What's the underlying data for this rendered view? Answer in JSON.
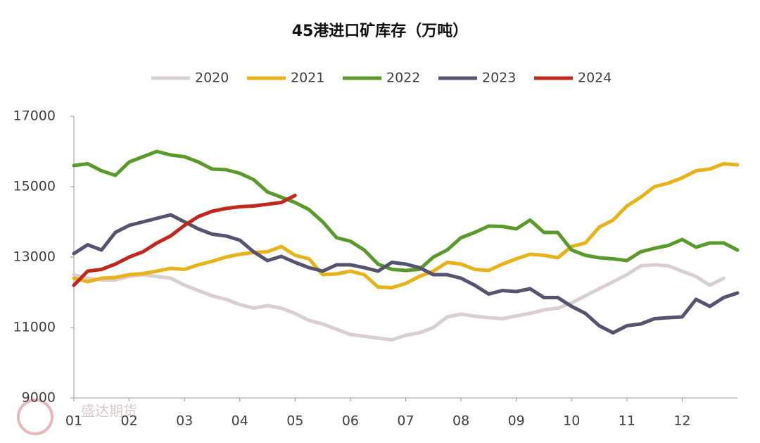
{
  "chart_data": {
    "type": "line",
    "title": "45港进口矿库存（万吨）",
    "watermark": "盛达期货",
    "x": [
      0,
      0.25,
      0.5,
      0.75,
      1,
      1.25,
      1.5,
      1.75,
      2,
      2.25,
      2.5,
      2.75,
      3,
      3.25,
      3.5,
      3.75,
      4,
      4.25,
      4.5,
      4.75,
      5,
      5.25,
      5.5,
      5.75,
      6,
      6.25,
      6.5,
      6.75,
      7,
      7.25,
      7.5,
      7.75,
      8,
      8.25,
      8.5,
      8.75,
      9,
      9.25,
      9.5,
      9.75,
      10,
      10.25,
      10.5,
      10.75,
      11,
      11.25,
      11.5,
      11.75,
      12
    ],
    "xlim": [
      0,
      12
    ],
    "xticks": [
      {
        "value": 0,
        "label": "01"
      },
      {
        "value": 1,
        "label": "02"
      },
      {
        "value": 2,
        "label": "03"
      },
      {
        "value": 3,
        "label": "04"
      },
      {
        "value": 4,
        "label": "05"
      },
      {
        "value": 5,
        "label": "06"
      },
      {
        "value": 6,
        "label": "07"
      },
      {
        "value": 7,
        "label": "08"
      },
      {
        "value": 8,
        "label": "09"
      },
      {
        "value": 9,
        "label": "10"
      },
      {
        "value": 10,
        "label": "11"
      },
      {
        "value": 11,
        "label": "12"
      }
    ],
    "ylim": [
      9000,
      17000
    ],
    "yticks": [
      9000,
      11000,
      13000,
      15000,
      17000
    ],
    "grid": false,
    "legend": "top",
    "series": [
      {
        "name": "2020",
        "color": "#d9cfd2",
        "values": [
          12500,
          12400,
          12350,
          12350,
          12450,
          12500,
          12450,
          12400,
          12200,
          12050,
          11900,
          11800,
          11650,
          11550,
          11620,
          11550,
          11400,
          11200,
          11100,
          10950,
          10800,
          10750,
          10700,
          10650,
          10780,
          10850,
          11000,
          11300,
          11380,
          11320,
          11280,
          11250,
          11330,
          11400,
          11500,
          11550,
          11700,
          11900,
          12100,
          12300,
          12500,
          12750,
          12780,
          12750,
          12600,
          12450,
          12200,
          12400,
          null
        ]
      },
      {
        "name": "2021",
        "color": "#e8b21a",
        "values": [
          12400,
          12300,
          12400,
          12420,
          12500,
          12530,
          12600,
          12680,
          12650,
          12780,
          12880,
          13000,
          13080,
          13130,
          13150,
          13300,
          13050,
          12950,
          12500,
          12520,
          12600,
          12500,
          12150,
          12130,
          12250,
          12450,
          12600,
          12850,
          12800,
          12650,
          12620,
          12800,
          12950,
          13080,
          13050,
          12980,
          13300,
          13400,
          13850,
          14050,
          14450,
          14700,
          15000,
          15100,
          15250,
          15450,
          15500,
          15650,
          15620
        ]
      },
      {
        "name": "2022",
        "color": "#5a9a2a",
        "values": [
          15600,
          15650,
          15450,
          15320,
          15700,
          15850,
          16000,
          15900,
          15850,
          15700,
          15500,
          15480,
          15380,
          15200,
          14850,
          14700,
          14550,
          14350,
          14000,
          13550,
          13450,
          13200,
          12800,
          12650,
          12620,
          12650,
          13000,
          13200,
          13550,
          13700,
          13880,
          13870,
          13800,
          14050,
          13700,
          13700,
          13200,
          13050,
          12980,
          12950,
          12900,
          13150,
          13250,
          13330,
          13500,
          13280,
          13400,
          13400,
          13200
        ]
      },
      {
        "name": "2023",
        "color": "#545470",
        "values": [
          13100,
          13350,
          13200,
          13700,
          13900,
          14000,
          14100,
          14200,
          14000,
          13800,
          13650,
          13600,
          13480,
          13150,
          12900,
          13020,
          12850,
          12700,
          12600,
          12780,
          12780,
          12700,
          12600,
          12850,
          12800,
          12700,
          12500,
          12500,
          12400,
          12200,
          11950,
          12050,
          12020,
          12100,
          11850,
          11850,
          11600,
          11400,
          11050,
          10850,
          11050,
          11100,
          11250,
          11280,
          11300,
          11800,
          11600,
          11850,
          11980
        ]
      },
      {
        "name": "2024",
        "color": "#c0281e",
        "values": [
          12200,
          12600,
          12650,
          12800,
          13000,
          13150,
          13400,
          13600,
          13900,
          14150,
          14300,
          14380,
          14430,
          14450,
          14500,
          14550,
          14750,
          null,
          null,
          null,
          null,
          null,
          null,
          null,
          null,
          null,
          null,
          null,
          null,
          null,
          null,
          null,
          null,
          null,
          null,
          null,
          null,
          null,
          null,
          null,
          null,
          null,
          null,
          null,
          null,
          null,
          null,
          null,
          null
        ]
      }
    ]
  }
}
